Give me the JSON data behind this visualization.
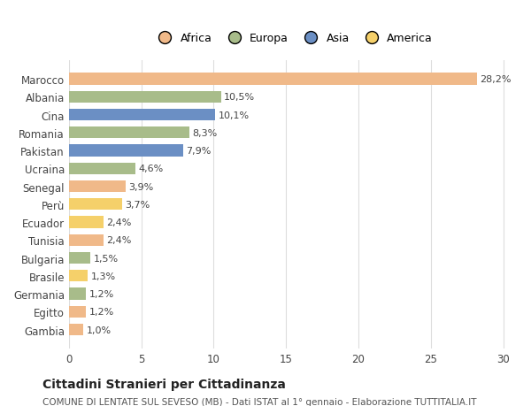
{
  "categories": [
    "Marocco",
    "Albania",
    "Cina",
    "Romania",
    "Pakistan",
    "Ucraina",
    "Senegal",
    "Perù",
    "Ecuador",
    "Tunisia",
    "Bulgaria",
    "Brasile",
    "Germania",
    "Egitto",
    "Gambia"
  ],
  "values": [
    28.2,
    10.5,
    10.1,
    8.3,
    7.9,
    4.6,
    3.9,
    3.7,
    2.4,
    2.4,
    1.5,
    1.3,
    1.2,
    1.2,
    1.0
  ],
  "labels": [
    "28,2%",
    "10,5%",
    "10,1%",
    "8,3%",
    "7,9%",
    "4,6%",
    "3,9%",
    "3,7%",
    "2,4%",
    "2,4%",
    "1,5%",
    "1,3%",
    "1,2%",
    "1,2%",
    "1,0%"
  ],
  "colors": [
    "#F0B989",
    "#A8BC8A",
    "#6B8FC4",
    "#A8BC8A",
    "#6B8FC4",
    "#A8BC8A",
    "#F0B989",
    "#F5D06A",
    "#F5D06A",
    "#F0B989",
    "#A8BC8A",
    "#F5D06A",
    "#A8BC8A",
    "#F0B989",
    "#F0B989"
  ],
  "legend_labels": [
    "Africa",
    "Europa",
    "Asia",
    "America"
  ],
  "legend_colors": [
    "#F0B989",
    "#A8BC8A",
    "#6B8FC4",
    "#F5D06A"
  ],
  "xlim": [
    0,
    31
  ],
  "xticks": [
    0,
    5,
    10,
    15,
    20,
    25,
    30
  ],
  "title": "Cittadini Stranieri per Cittadinanza",
  "subtitle": "COMUNE DI LENTATE SUL SEVESO (MB) - Dati ISTAT al 1° gennaio - Elaborazione TUTTITALIA.IT",
  "background_color": "#ffffff",
  "grid_color": "#dddddd"
}
